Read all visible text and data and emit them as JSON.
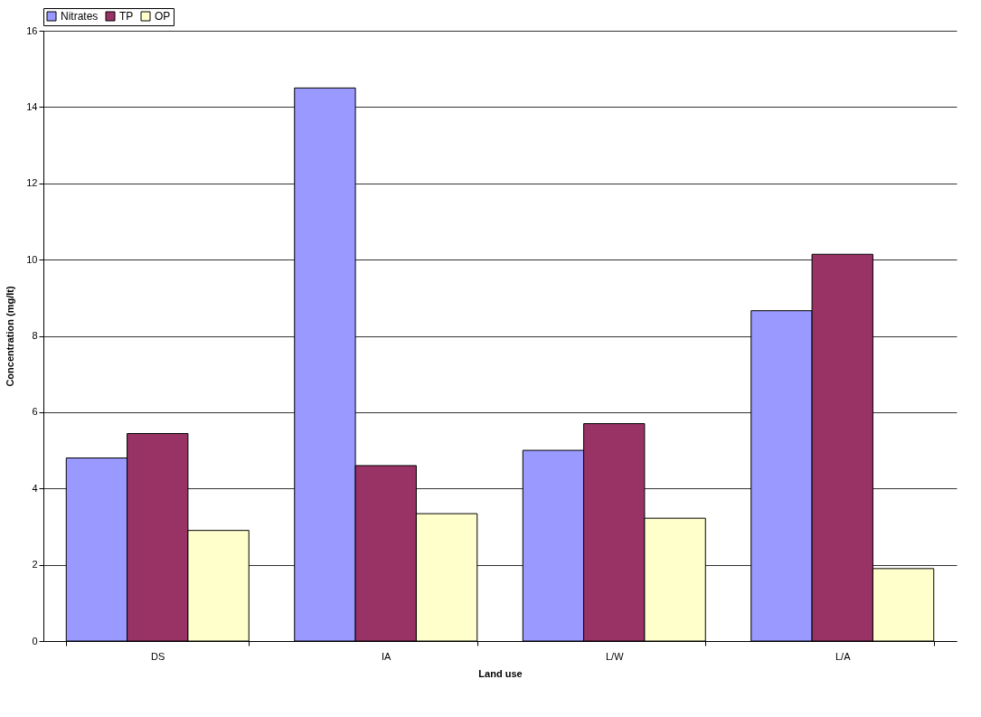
{
  "chart_data": {
    "type": "bar",
    "xlabel": "Land use",
    "ylabel": "Concentration (mg/lt)",
    "categories": [
      "DS",
      "IA",
      "L/W",
      "L/A"
    ],
    "series": [
      {
        "name": "Nitrates",
        "color": "#9999ff",
        "values": [
          4.8,
          14.5,
          5.0,
          8.66
        ]
      },
      {
        "name": "TP",
        "color": "#993366",
        "values": [
          5.44,
          4.6,
          5.7,
          10.14
        ]
      },
      {
        "name": "OP",
        "color": "#ffffcc",
        "values": [
          2.9,
          3.34,
          3.22,
          1.9
        ]
      }
    ],
    "ylim": [
      0,
      16
    ],
    "yticks": [
      0,
      2,
      4,
      6,
      8,
      10,
      12,
      14,
      16
    ],
    "grid": "y",
    "legend": "top"
  }
}
